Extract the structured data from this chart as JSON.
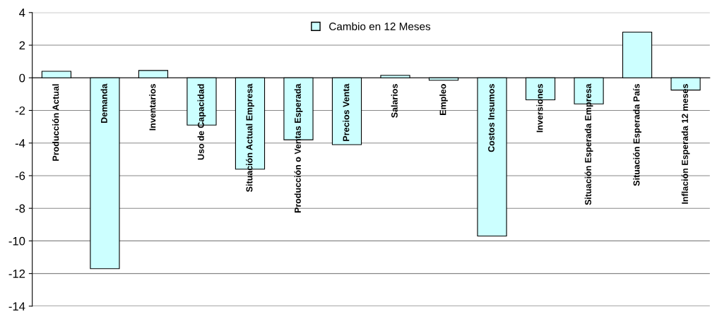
{
  "chart_data": {
    "type": "bar",
    "categories": [
      "Producción Actual",
      "Demanda",
      "Inventarios",
      "Uso de Capacidad",
      "Situación Actual Empresa",
      "Producción o Ventas Esperada",
      "Precios Venta",
      "Salarios",
      "Empleo",
      "Costos Insumos",
      "Inversiones",
      "Situación Esperada Empresa",
      "Situación Esperada País",
      "Inflación Esperada 12 meses"
    ],
    "series": [
      {
        "name": "Cambio en 12 Meses",
        "color": "#ccffff",
        "values": [
          0.4,
          -11.7,
          0.45,
          -2.9,
          -5.6,
          -3.8,
          -4.1,
          0.15,
          -0.15,
          -9.7,
          -1.35,
          -1.6,
          2.8,
          -0.75
        ]
      }
    ],
    "ylim": [
      -14,
      4
    ],
    "yticks": [
      -14,
      -12,
      -10,
      -8,
      -6,
      -4,
      -2,
      0,
      2,
      4
    ],
    "grid": "y",
    "legend": "top"
  }
}
